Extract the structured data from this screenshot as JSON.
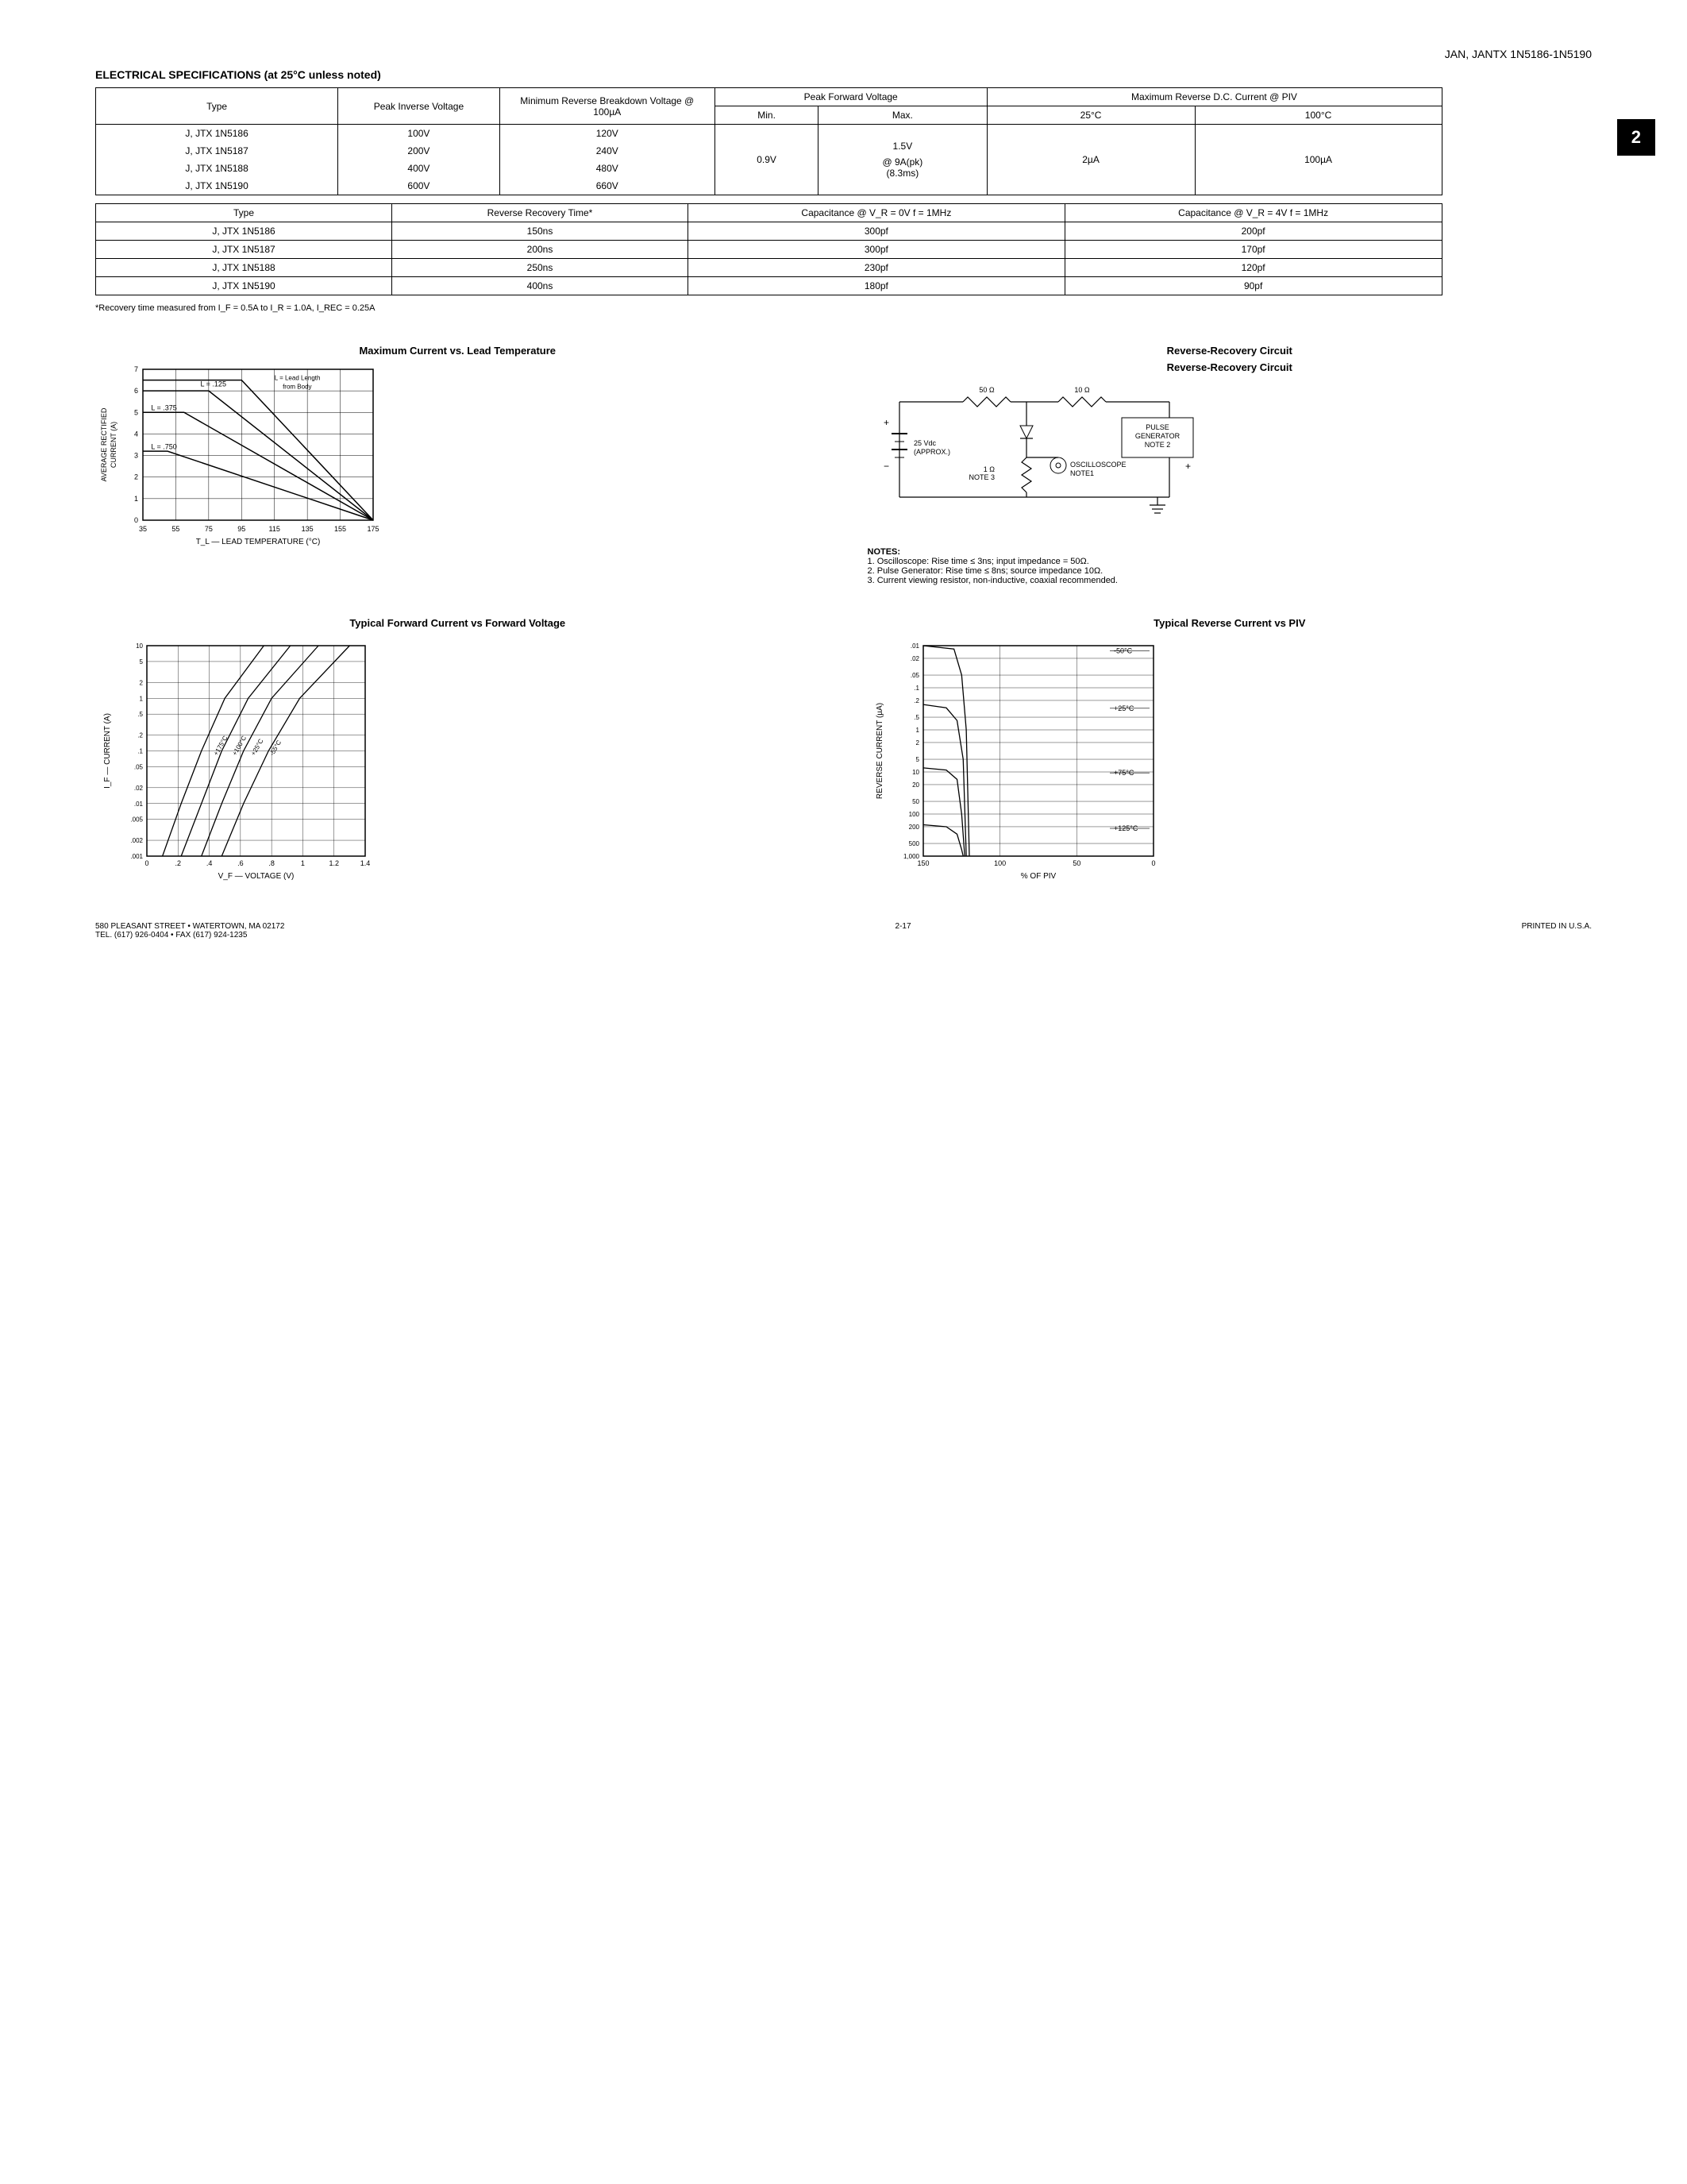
{
  "header": {
    "right": "JAN, JANTX 1N5186-1N5190"
  },
  "section_title": "ELECTRICAL SPECIFICATIONS (at 25°C unless noted)",
  "page_tab": "2",
  "table1": {
    "headers": {
      "type": "Type",
      "piv": "Peak\nInverse\nVoltage",
      "mrbv": "Minimum\nReverse\nBreakdown\nVoltage @ 100µA",
      "pfv": "Peak\nForward\nVoltage",
      "pfv_min": "Min.",
      "pfv_max": "Max.",
      "mrdc": "Maximum\nReverse D.C.\nCurrent\n@ PIV",
      "t25": "25°C",
      "t100": "100°C"
    },
    "rows": [
      {
        "type": "J, JTX 1N5186",
        "piv": "100V",
        "mrbv": "120V"
      },
      {
        "type": "J, JTX 1N5187",
        "piv": "200V",
        "mrbv": "240V"
      },
      {
        "type": "J, JTX 1N5188",
        "piv": "400V",
        "mrbv": "480V"
      },
      {
        "type": "J, JTX 1N5190",
        "piv": "600V",
        "mrbv": "660V"
      }
    ],
    "pfv_min_val": "0.9V",
    "pfv_max_val": "1.5V",
    "pfv_at": "@ 9A(pk)",
    "pfv_time": "(8.3ms)",
    "t25_val": "2µA",
    "t100_val": "100µA"
  },
  "table2": {
    "headers": {
      "type": "Type",
      "rrt": "Reverse\nRecovery\nTime*",
      "cap0": "Capacitance\n@ V_R = 0V\nf = 1MHz",
      "cap4": "Capacitance\n@ V_R = 4V\nf = 1MHz"
    },
    "rows": [
      {
        "type": "J, JTX 1N5186",
        "rrt": "150ns",
        "c0": "300pf",
        "c4": "200pf"
      },
      {
        "type": "J, JTX 1N5187",
        "rrt": "200ns",
        "c0": "300pf",
        "c4": "170pf"
      },
      {
        "type": "J, JTX 1N5188",
        "rrt": "250ns",
        "c0": "230pf",
        "c4": "120pf"
      },
      {
        "type": "J, JTX 1N5190",
        "rrt": "400ns",
        "c0": "180pf",
        "c4": "90pf"
      }
    ]
  },
  "footnote": "*Recovery time measured from I_F = 0.5A to I_R = 1.0A, I_REC = 0.25A",
  "chart1": {
    "title": "Maximum Current vs. Lead Temperature",
    "ylabel": "AVERAGE RECTIFIED\nCURRENT (A)",
    "xlabel": "T_L — LEAD TEMPERATURE (°C)",
    "yticks": [
      "0",
      "1",
      "2",
      "3",
      "4",
      "5",
      "6",
      "7"
    ],
    "xticks": [
      "35",
      "55",
      "75",
      "95",
      "115",
      "135",
      "155",
      "175"
    ],
    "xlim": [
      35,
      175
    ],
    "ylim": [
      0,
      7
    ],
    "note1": "L = .125",
    "note2": "L = Lead Length\nfrom Body",
    "note3": "L = .375",
    "note4": "L = .750",
    "lines": [
      {
        "pts": [
          [
            35,
            6.5
          ],
          [
            95,
            6.5
          ],
          [
            175,
            0
          ]
        ]
      },
      {
        "pts": [
          [
            35,
            6.0
          ],
          [
            75,
            6.0
          ],
          [
            175,
            0
          ]
        ]
      },
      {
        "pts": [
          [
            35,
            5.0
          ],
          [
            60,
            5.0
          ],
          [
            175,
            0
          ]
        ]
      },
      {
        "pts": [
          [
            35,
            3.2
          ],
          [
            50,
            3.2
          ],
          [
            175,
            0
          ]
        ]
      }
    ],
    "grid_color": "#000",
    "line_color": "#000"
  },
  "circuit": {
    "title": "Reverse-Recovery Circuit",
    "r1": "50 Ω",
    "r2": "10 Ω",
    "vdc": "25 Vdc\n(APPROX.)",
    "r3": "1 Ω\nNOTE 3",
    "scope": "OSCILLOSCOPE\nNOTE1",
    "pg": "PULSE\nGENERATOR\nNOTE 2"
  },
  "notes": {
    "heading": "NOTES:",
    "n1": "1. Oscilloscope: Rise time ≤ 3ns; input impedance = 50Ω.",
    "n2": "2. Pulse Generator: Rise time ≤ 8ns; source impedance 10Ω.",
    "n3": "3. Current viewing resistor, non-inductive, coaxial recommended."
  },
  "chart2": {
    "title": "Typical Forward Current\nvs Forward Voltage",
    "ylabel": "I_F — CURRENT (A)",
    "xlabel": "V_F — VOLTAGE (V)",
    "yticks": [
      ".001",
      ".002",
      ".005",
      ".01",
      ".02",
      ".05",
      ".1",
      ".2",
      ".5",
      "1",
      "2",
      "5",
      "10"
    ],
    "xticks": [
      "0",
      ".2",
      ".4",
      ".6",
      ".8",
      "1",
      "1.2",
      "1.4"
    ],
    "temps": [
      "+175°C",
      "+100°C",
      "+25°C",
      "-55°C"
    ],
    "curves": [
      [
        [
          0.1,
          0.001
        ],
        [
          0.22,
          0.01
        ],
        [
          0.35,
          0.1
        ],
        [
          0.5,
          1
        ],
        [
          0.75,
          10
        ]
      ],
      [
        [
          0.22,
          0.001
        ],
        [
          0.35,
          0.01
        ],
        [
          0.48,
          0.1
        ],
        [
          0.65,
          1
        ],
        [
          0.92,
          10
        ]
      ],
      [
        [
          0.35,
          0.001
        ],
        [
          0.48,
          0.01
        ],
        [
          0.62,
          0.1
        ],
        [
          0.8,
          1
        ],
        [
          1.1,
          10
        ]
      ],
      [
        [
          0.48,
          0.001
        ],
        [
          0.62,
          0.01
        ],
        [
          0.78,
          0.1
        ],
        [
          0.98,
          1
        ],
        [
          1.3,
          10
        ]
      ]
    ],
    "xlim": [
      0,
      1.4
    ]
  },
  "chart3": {
    "title": "Typical Reverse Current vs PIV",
    "ylabel": "REVERSE CURRENT (µA)",
    "xlabel": "% OF PIV",
    "yticks": [
      ".01",
      ".02",
      ".05",
      ".1",
      ".2",
      ".5",
      "1",
      "2",
      "5",
      "10",
      "20",
      "50",
      "100",
      "200",
      "500",
      "1,000"
    ],
    "xticks": [
      "150",
      "100",
      "50",
      "0"
    ],
    "temps": [
      "-50°C",
      "+25°C",
      "+75°C",
      "+125°C"
    ],
    "curves": [
      [
        [
          150,
          0.01
        ],
        [
          130,
          0.012
        ],
        [
          125,
          0.05
        ],
        [
          122,
          1
        ],
        [
          120,
          1000
        ]
      ],
      [
        [
          150,
          0.25
        ],
        [
          135,
          0.3
        ],
        [
          128,
          0.6
        ],
        [
          124,
          5
        ],
        [
          122,
          1000
        ]
      ],
      [
        [
          150,
          8
        ],
        [
          135,
          9
        ],
        [
          128,
          15
        ],
        [
          125,
          100
        ],
        [
          123,
          1000
        ]
      ],
      [
        [
          150,
          180
        ],
        [
          135,
          200
        ],
        [
          128,
          300
        ],
        [
          125,
          700
        ],
        [
          124,
          1000
        ]
      ]
    ]
  },
  "footer": {
    "left": "580 PLEASANT STREET • WATERTOWN, MA 02172\nTEL. (617) 926-0404 • FAX (617) 924-1235",
    "center": "2-17",
    "right": "PRINTED IN U.S.A."
  },
  "colors": {
    "bg": "#ffffff",
    "fg": "#000000",
    "grid": "#000000"
  }
}
